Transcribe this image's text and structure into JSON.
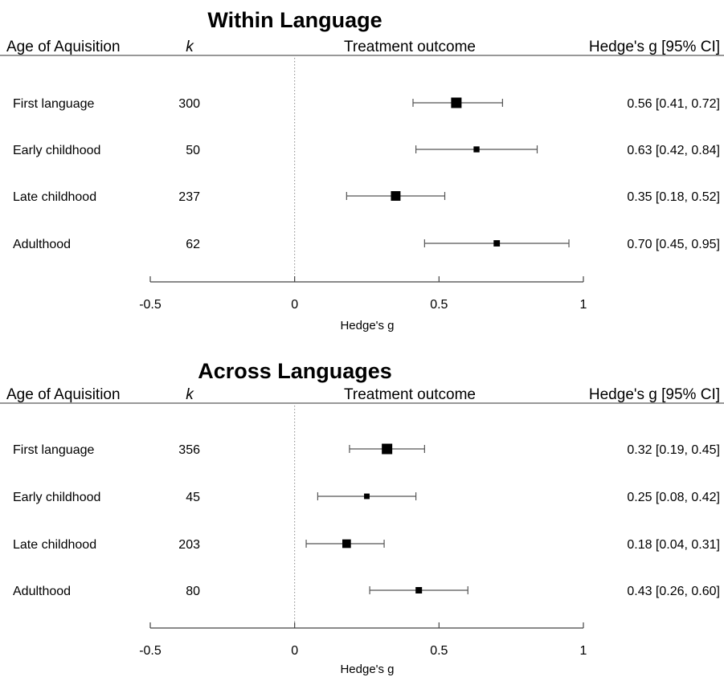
{
  "chart_data": [
    {
      "type": "forest",
      "title": "Within Language",
      "headers": {
        "group": "Age of Aquisition",
        "k": "k",
        "outcome": "Treatment outcome",
        "estimate": "Hedge's g [95% CI]"
      },
      "xlabel": "Hedge's g",
      "xlim": [
        -0.5,
        1
      ],
      "ticks": [
        -0.5,
        0,
        0.5,
        1
      ],
      "tick_labels": [
        "-0.5",
        "0",
        "0.5",
        "1"
      ],
      "reference_line": 0,
      "rows": [
        {
          "label": "First language",
          "k": 300,
          "g": 0.56,
          "lo": 0.41,
          "hi": 0.72,
          "text": "0.56 [0.41, 0.72]"
        },
        {
          "label": "Early childhood",
          "k": 50,
          "g": 0.63,
          "lo": 0.42,
          "hi": 0.84,
          "text": "0.63 [0.42, 0.84]"
        },
        {
          "label": "Late childhood",
          "k": 237,
          "g": 0.35,
          "lo": 0.18,
          "hi": 0.52,
          "text": "0.35 [0.18, 0.52]"
        },
        {
          "label": "Adulthood",
          "k": 62,
          "g": 0.7,
          "lo": 0.45,
          "hi": 0.95,
          "text": "0.70 [0.45, 0.95]"
        }
      ]
    },
    {
      "type": "forest",
      "title": "Across Languages",
      "headers": {
        "group": "Age of Aquisition",
        "k": "k",
        "outcome": "Treatment outcome",
        "estimate": "Hedge's g [95% CI]"
      },
      "xlabel": "Hedge's g",
      "xlim": [
        -0.5,
        1
      ],
      "ticks": [
        -0.5,
        0,
        0.5,
        1
      ],
      "tick_labels": [
        "-0.5",
        "0",
        "0.5",
        "1"
      ],
      "reference_line": 0,
      "rows": [
        {
          "label": "First language",
          "k": 356,
          "g": 0.32,
          "lo": 0.19,
          "hi": 0.45,
          "text": "0.32 [0.19, 0.45]"
        },
        {
          "label": "Early childhood",
          "k": 45,
          "g": 0.25,
          "lo": 0.08,
          "hi": 0.42,
          "text": "0.25 [0.08, 0.42]"
        },
        {
          "label": "Late childhood",
          "k": 203,
          "g": 0.18,
          "lo": 0.04,
          "hi": 0.31,
          "text": "0.18 [0.04, 0.31]"
        },
        {
          "label": "Adulthood",
          "k": 80,
          "g": 0.43,
          "lo": 0.26,
          "hi": 0.6,
          "text": "0.43 [0.26, 0.60]"
        }
      ]
    }
  ]
}
